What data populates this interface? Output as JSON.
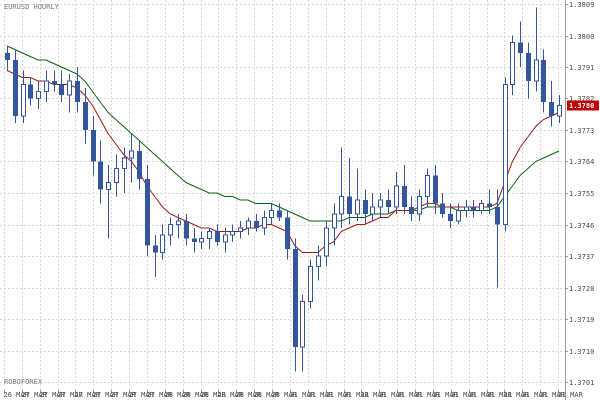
{
  "symbol_label": "EURUSD HOURLY",
  "broker_label": "ROBOFOREX",
  "colors": {
    "background": "#ffffff",
    "grid": "#d8d8d8",
    "candle_up": "#ffffff",
    "candle_down": "#33579a",
    "wick": "#33579a",
    "ma_fast": "#a01818",
    "ma_slow": "#0a640a",
    "price_tag": "#c00000"
  },
  "chart_data": {
    "type": "candlestick",
    "title": "EURUSD HOURLY",
    "ylim": [
      1.3701,
      1.3809
    ],
    "y_ticks": [
      "1.3809",
      "1.3800",
      "1.3791",
      "1.3782",
      "1.3773",
      "1.3764",
      "1.3755",
      "1.3746",
      "1.3737",
      "1.3728",
      "1.3719",
      "1.3710",
      "1.3701"
    ],
    "current_price": "1.3780",
    "x_ticks": [
      "26 MAR",
      "27 MAR",
      "27 MAR",
      "27 MAR",
      "27 MAR",
      "27 MAR",
      "27 MAR",
      "27 MAR",
      "27 MAR",
      "28 MAR",
      "28 MAR",
      "28 MAR",
      "28 MAR",
      "28 MAR",
      "28 MAR",
      "28 MAR",
      "31 MAR",
      "31 MAR",
      "31 MAR",
      "31 MAR",
      "31 MAR",
      "31 MAR",
      "31 MAR",
      "31 MAR",
      "31 MAR",
      "31 MAR",
      "31 MAR",
      "31 MAR",
      "31 MAR",
      "31 MAR",
      "31 MAR",
      "31 MAR"
    ],
    "candles": [
      [
        1.3795,
        1.3797,
        1.379,
        1.3793
      ],
      [
        1.3793,
        1.3796,
        1.3775,
        1.3777
      ],
      [
        1.3777,
        1.379,
        1.3775,
        1.3786
      ],
      [
        1.3786,
        1.3788,
        1.378,
        1.3782
      ],
      [
        1.3782,
        1.3787,
        1.3779,
        1.3784
      ],
      [
        1.3784,
        1.379,
        1.3781,
        1.3787
      ],
      [
        1.3787,
        1.379,
        1.3784,
        1.3786
      ],
      [
        1.3786,
        1.379,
        1.3781,
        1.3783
      ],
      [
        1.3783,
        1.3789,
        1.3778,
        1.3787
      ],
      [
        1.3787,
        1.3791,
        1.3778,
        1.3781
      ],
      [
        1.3781,
        1.3785,
        1.3769,
        1.3773
      ],
      [
        1.3773,
        1.3777,
        1.376,
        1.3764
      ],
      [
        1.3764,
        1.377,
        1.3752,
        1.3756
      ],
      [
        1.3756,
        1.3763,
        1.3742,
        1.3758
      ],
      [
        1.3758,
        1.3766,
        1.3754,
        1.3762
      ],
      [
        1.3762,
        1.3768,
        1.3755,
        1.3765
      ],
      [
        1.3765,
        1.3772,
        1.3758,
        1.3767
      ],
      [
        1.3767,
        1.377,
        1.3756,
        1.3759
      ],
      [
        1.3759,
        1.3763,
        1.3737,
        1.374
      ],
      [
        1.374,
        1.3743,
        1.3731,
        1.3738
      ],
      [
        1.3738,
        1.3746,
        1.3736,
        1.3743
      ],
      [
        1.3743,
        1.3748,
        1.374,
        1.3746
      ],
      [
        1.3746,
        1.3749,
        1.3742,
        1.3747
      ],
      [
        1.3747,
        1.3749,
        1.374,
        1.3742
      ],
      [
        1.3742,
        1.3745,
        1.3738,
        1.3741
      ],
      [
        1.3741,
        1.3744,
        1.3739,
        1.3742
      ],
      [
        1.3742,
        1.3745,
        1.3739,
        1.3744
      ],
      [
        1.3744,
        1.3746,
        1.374,
        1.3741
      ],
      [
        1.3741,
        1.3745,
        1.3738,
        1.3743
      ],
      [
        1.3743,
        1.3746,
        1.3741,
        1.3744
      ],
      [
        1.3744,
        1.3747,
        1.3742,
        1.3745
      ],
      [
        1.3745,
        1.3748,
        1.3743,
        1.3747
      ],
      [
        1.3747,
        1.3749,
        1.3744,
        1.3745
      ],
      [
        1.3745,
        1.375,
        1.3743,
        1.3748
      ],
      [
        1.3748,
        1.3752,
        1.3746,
        1.375
      ],
      [
        1.375,
        1.3752,
        1.3747,
        1.3748
      ],
      [
        1.3748,
        1.375,
        1.3736,
        1.3739
      ],
      [
        1.3739,
        1.3742,
        1.3704,
        1.3711
      ],
      [
        1.3711,
        1.3726,
        1.3704,
        1.3724
      ],
      [
        1.3724,
        1.3736,
        1.3722,
        1.3734
      ],
      [
        1.3734,
        1.374,
        1.373,
        1.3737
      ],
      [
        1.3737,
        1.3747,
        1.3734,
        1.3745
      ],
      [
        1.3745,
        1.3752,
        1.374,
        1.3749
      ],
      [
        1.3749,
        1.3768,
        1.3745,
        1.3754
      ],
      [
        1.3754,
        1.3765,
        1.3746,
        1.3749
      ],
      [
        1.3749,
        1.3762,
        1.3747,
        1.3753
      ],
      [
        1.3753,
        1.3756,
        1.3746,
        1.3749
      ],
      [
        1.3749,
        1.3755,
        1.3747,
        1.3751
      ],
      [
        1.3751,
        1.3755,
        1.3748,
        1.3753
      ],
      [
        1.3753,
        1.3756,
        1.3749,
        1.3751
      ],
      [
        1.3751,
        1.3761,
        1.3749,
        1.3757
      ],
      [
        1.3757,
        1.3763,
        1.3749,
        1.3751
      ],
      [
        1.3751,
        1.3754,
        1.3747,
        1.3749
      ],
      [
        1.3749,
        1.3756,
        1.3747,
        1.3754
      ],
      [
        1.3754,
        1.3762,
        1.3751,
        1.376
      ],
      [
        1.376,
        1.3763,
        1.3749,
        1.3752
      ],
      [
        1.3752,
        1.3755,
        1.3748,
        1.3749
      ],
      [
        1.3749,
        1.3752,
        1.3745,
        1.3747
      ],
      [
        1.3747,
        1.3752,
        1.3746,
        1.375
      ],
      [
        1.375,
        1.3753,
        1.3748,
        1.3751
      ],
      [
        1.3751,
        1.3753,
        1.3748,
        1.375
      ],
      [
        1.375,
        1.3753,
        1.3749,
        1.3752
      ],
      [
        1.3752,
        1.3756,
        1.3749,
        1.3751
      ],
      [
        1.3751,
        1.3756,
        1.3728,
        1.3746
      ],
      [
        1.3746,
        1.3788,
        1.3744,
        1.3786
      ],
      [
        1.3786,
        1.38,
        1.3783,
        1.3798
      ],
      [
        1.3798,
        1.3804,
        1.3791,
        1.3795
      ],
      [
        1.3795,
        1.3798,
        1.3782,
        1.3787
      ],
      [
        1.3787,
        1.3808,
        1.3784,
        1.3793
      ],
      [
        1.3793,
        1.3796,
        1.3778,
        1.3781
      ],
      [
        1.3781,
        1.3787,
        1.3774,
        1.3777
      ],
      [
        1.3777,
        1.3783,
        1.3775,
        1.378
      ]
    ],
    "series": [
      {
        "name": "",
        "values": [
          1.3797,
          1.3796,
          1.3795,
          1.3794,
          1.3793,
          1.3793,
          1.3792,
          1.3791,
          1.379,
          1.3789,
          1.3787,
          1.3784,
          1.3781,
          1.3778,
          1.3776,
          1.3774,
          1.3772,
          1.377,
          1.3768,
          1.3766,
          1.3764,
          1.3762,
          1.376,
          1.3758,
          1.3757,
          1.3756,
          1.3755,
          1.3755,
          1.3754,
          1.3754,
          1.3753,
          1.3753,
          1.3752,
          1.3752,
          1.3752,
          1.3751,
          1.375,
          1.3749,
          1.3748,
          1.3747,
          1.3747,
          1.3747,
          1.3747,
          1.3747,
          1.3748,
          1.3748,
          1.3748,
          1.3749,
          1.3749,
          1.3749,
          1.375,
          1.375,
          1.375,
          1.375,
          1.3751,
          1.3751,
          1.3751,
          1.3751,
          1.375,
          1.375,
          1.375,
          1.375,
          1.375,
          1.3751,
          1.3754,
          1.3757,
          1.376,
          1.3762,
          1.3764,
          1.3765,
          1.3766,
          1.3767
        ]
      },
      {
        "name": "",
        "values": [
          1.379,
          1.3789,
          1.3788,
          1.3788,
          1.3787,
          1.3787,
          1.3786,
          1.3786,
          1.3786,
          1.3785,
          1.3783,
          1.378,
          1.3776,
          1.3772,
          1.3769,
          1.3766,
          1.3764,
          1.3761,
          1.3757,
          1.3754,
          1.3751,
          1.3749,
          1.3748,
          1.3747,
          1.3746,
          1.3745,
          1.3745,
          1.3744,
          1.3744,
          1.3744,
          1.3744,
          1.3745,
          1.3745,
          1.3746,
          1.3746,
          1.3745,
          1.3744,
          1.374,
          1.3738,
          1.3738,
          1.3738,
          1.374,
          1.3741,
          1.3744,
          1.3745,
          1.3746,
          1.3746,
          1.3747,
          1.3748,
          1.3748,
          1.375,
          1.375,
          1.375,
          1.3751,
          1.3752,
          1.3752,
          1.3751,
          1.3751,
          1.3751,
          1.3751,
          1.3751,
          1.3751,
          1.3751,
          1.3752,
          1.3758,
          1.3764,
          1.3768,
          1.3771,
          1.3774,
          1.3776,
          1.3777,
          1.3778
        ]
      }
    ],
    "grid": true
  }
}
